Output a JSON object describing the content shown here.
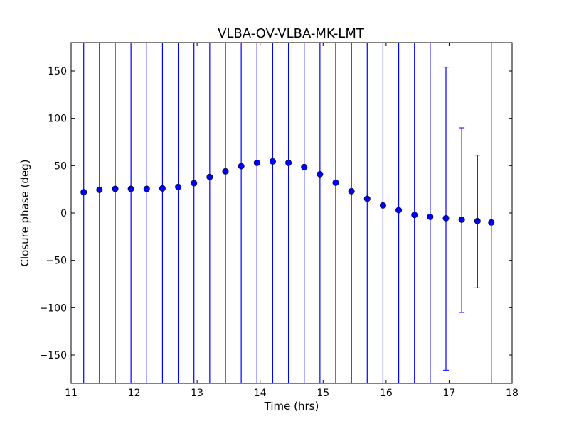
{
  "chart_data": {
    "type": "scatter",
    "title": "VLBA-OV-VLBA-MK-LMT",
    "xlabel": "Time (hrs)",
    "ylabel": "Closure phase (deg)",
    "xlim": [
      11,
      18
    ],
    "ylim": [
      -180,
      180
    ],
    "xticks": [
      11,
      12,
      13,
      14,
      15,
      16,
      17,
      18
    ],
    "yticks": [
      -150,
      -100,
      -50,
      0,
      50,
      100,
      150
    ],
    "ytick_labels": [
      "−150",
      "−100",
      "−50",
      "0",
      "50",
      "100",
      "150"
    ],
    "grid": false,
    "marker_color": "#0000ff",
    "series": [
      {
        "x": [
          11.2,
          11.45,
          11.7,
          11.95,
          12.2,
          12.45,
          12.7,
          12.95,
          13.2,
          13.45,
          13.7,
          13.95,
          14.2,
          14.45,
          14.7,
          14.95,
          15.2,
          15.45,
          15.7,
          15.95,
          16.2,
          16.45,
          16.7,
          16.95,
          17.2,
          17.45,
          17.67
        ],
        "y": [
          22,
          24.5,
          25.5,
          25.5,
          25.5,
          26,
          27.5,
          31.5,
          38,
          44,
          49.5,
          53,
          54.5,
          53,
          48.5,
          41,
          32,
          23,
          15,
          8,
          3,
          -2,
          -4,
          -5.5,
          -7,
          -8.5,
          -10
        ],
        "err_low": [
          -180,
          -180,
          -180,
          -180,
          -180,
          -180,
          -180,
          -180,
          -180,
          -180,
          -180,
          -180,
          -180,
          -180,
          -180,
          -180,
          -180,
          -180,
          -180,
          -180,
          -180,
          -180,
          -180,
          -166,
          -105,
          -79,
          -180
        ],
        "err_high": [
          180,
          180,
          180,
          180,
          180,
          180,
          180,
          180,
          180,
          180,
          180,
          180,
          180,
          180,
          180,
          180,
          180,
          180,
          180,
          180,
          180,
          180,
          180,
          154,
          90,
          61,
          180
        ]
      }
    ]
  }
}
